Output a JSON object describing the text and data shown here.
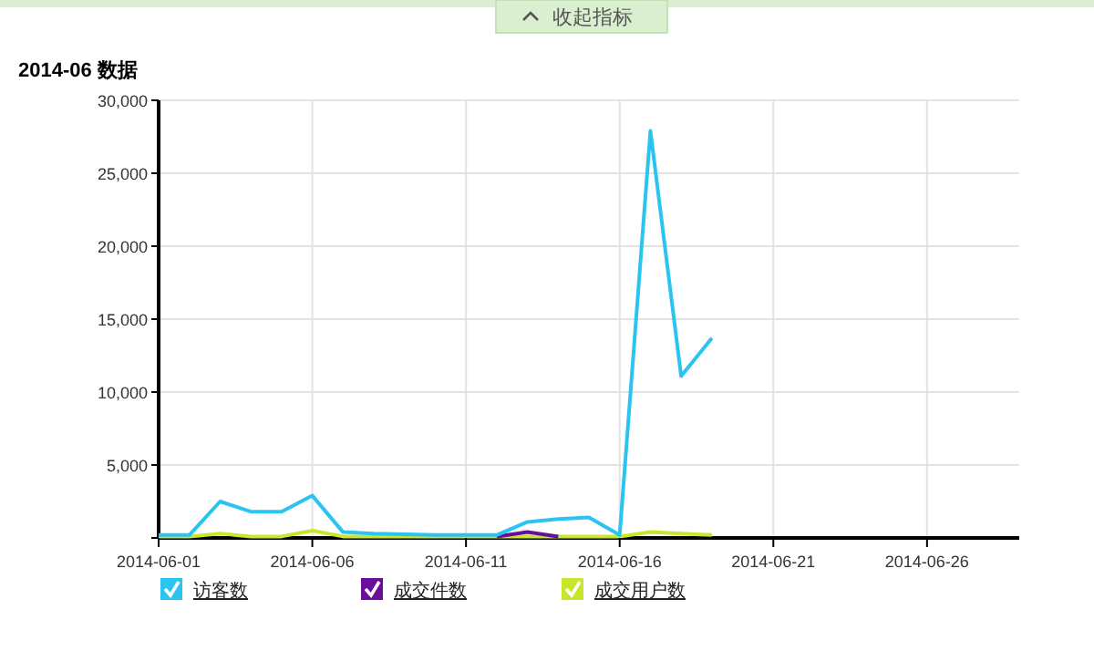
{
  "chart_data": {
    "type": "line",
    "title": "2014-06 数据",
    "annotations": [
      "收起指标"
    ],
    "x": [
      "2014-06-01",
      "2014-06-02",
      "2014-06-03",
      "2014-06-04",
      "2014-06-05",
      "2014-06-06",
      "2014-06-07",
      "2014-06-08",
      "2014-06-09",
      "2014-06-10",
      "2014-06-11",
      "2014-06-12",
      "2014-06-13",
      "2014-06-14",
      "2014-06-15",
      "2014-06-16",
      "2014-06-17",
      "2014-06-18",
      "2014-06-19"
    ],
    "series": [
      {
        "name": "访客数",
        "color": "#29c5f0",
        "values": [
          200,
          200,
          2500,
          1800,
          1800,
          2900,
          400,
          300,
          250,
          200,
          200,
          200,
          1100,
          1300,
          1400,
          200,
          27900,
          11100,
          13700
        ]
      },
      {
        "name": "成交件数",
        "color": "#6a0d9c",
        "values": [
          null,
          null,
          null,
          null,
          null,
          null,
          null,
          null,
          null,
          null,
          null,
          100,
          400,
          100,
          null,
          null,
          null,
          null,
          null
        ]
      },
      {
        "name": "成交用户数",
        "color": "#c8e62a",
        "values": [
          100,
          100,
          300,
          100,
          100,
          500,
          100,
          100,
          100,
          100,
          100,
          100,
          100,
          100,
          100,
          100,
          400,
          300,
          200
        ]
      }
    ],
    "xlim": [
      "2014-06-01",
      "2014-06-29"
    ],
    "xticks": [
      {
        "value": "2014-06-01",
        "label": "2014-06-01"
      },
      {
        "value": "2014-06-06",
        "label": "2014-06-06"
      },
      {
        "value": "2014-06-11",
        "label": "2014-06-11"
      },
      {
        "value": "2014-06-16",
        "label": "2014-06-16"
      },
      {
        "value": "2014-06-21",
        "label": "2014-06-21"
      },
      {
        "value": "2014-06-26",
        "label": "2014-06-26"
      }
    ],
    "ylim": [
      0,
      30000
    ],
    "yticks": [
      {
        "value": 0,
        "label": null
      },
      {
        "value": 5000,
        "label": "5,000"
      },
      {
        "value": 10000,
        "label": "10,000"
      },
      {
        "value": 15000,
        "label": "15,000"
      },
      {
        "value": 20000,
        "label": "20,000"
      },
      {
        "value": 25000,
        "label": "25,000"
      },
      {
        "value": 30000,
        "label": "30,000"
      }
    ],
    "grid": true,
    "legend": "bottom",
    "marker": "none",
    "line_style": "solid"
  }
}
